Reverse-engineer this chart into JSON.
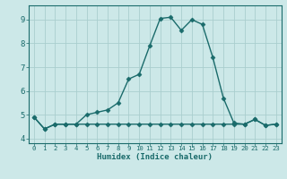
{
  "x": [
    0,
    1,
    2,
    3,
    4,
    5,
    6,
    7,
    8,
    9,
    10,
    11,
    12,
    13,
    14,
    15,
    16,
    17,
    18,
    19,
    20,
    21,
    22,
    23
  ],
  "y_upper": [
    4.9,
    4.4,
    4.6,
    4.6,
    4.6,
    5.0,
    5.1,
    5.2,
    5.5,
    6.5,
    6.7,
    7.9,
    9.05,
    9.1,
    8.55,
    9.0,
    8.8,
    7.4,
    5.7,
    4.65,
    4.6,
    4.8,
    4.55,
    4.6
  ],
  "y_lower": [
    4.9,
    4.4,
    4.6,
    4.6,
    4.6,
    4.6,
    4.6,
    4.6,
    4.6,
    4.6,
    4.6,
    4.6,
    4.6,
    4.6,
    4.6,
    4.6,
    4.6,
    4.6,
    4.6,
    4.6,
    4.6,
    4.8,
    4.55,
    4.6
  ],
  "line_color": "#1a6b6b",
  "bg_color": "#cce8e8",
  "grid_color": "#aacece",
  "xlabel": "Humidex (Indice chaleur)",
  "ylim": [
    3.8,
    9.6
  ],
  "xlim": [
    -0.5,
    23.5
  ],
  "yticks": [
    4,
    5,
    6,
    7,
    8,
    9
  ],
  "xticks": [
    0,
    1,
    2,
    3,
    4,
    5,
    6,
    7,
    8,
    9,
    10,
    11,
    12,
    13,
    14,
    15,
    16,
    17,
    18,
    19,
    20,
    21,
    22,
    23
  ],
  "marker": "D",
  "marker_size": 2.5,
  "linewidth": 1.0
}
